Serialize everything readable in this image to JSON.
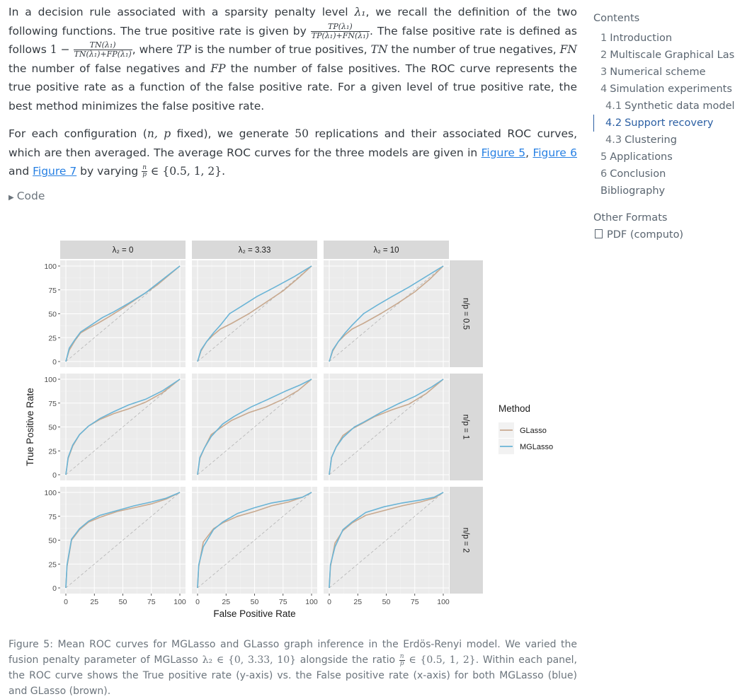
{
  "text": {
    "p1_a": "In a decision rule associated with a sparsity penalty level ",
    "lambda1": "λ₁",
    "p1_b": ", we recall the definition of the two following functions. The true positive rate is given by ",
    "tpr_num": "TP(λ₁)",
    "tpr_den": "TP(λ₁)+FN(λ₁)",
    "p1_c": ". The false positive rate is defined as follows ",
    "one_minus": "1 −",
    "fpr_num": "TN(λ₁)",
    "fpr_den": "TN(λ₁)+FP(λ₁)",
    "p1_d": ", where ",
    "tp": "TP",
    "p1_e": " is the number of true positives, ",
    "tn": "TN",
    "p1_f": " the number of true negatives, ",
    "fn": "FN",
    "p1_g": " the number of false negatives and ",
    "fp": "FP",
    "p1_h": " the number of false positives. The ROC curve represents the true positive rate as a function of the false positive rate. For a given level of true positive rate, the best method minimizes the false positive rate.",
    "p2_a": "For each configuration (",
    "np": "n, p",
    "p2_b": " fixed), we generate ",
    "fifty": "50",
    "p2_c": " replications and their associated ROC curves, which are then averaged. The average ROC curves for the three models are given in ",
    "fig5": "Figure 5",
    "comma": ", ",
    "fig6": "Figure 6",
    "and": " and ",
    "fig7": "Figure 7",
    "p2_d": " by varying ",
    "frac_n": "n",
    "frac_p": "p",
    "set_ratio": " ∈ {0.5, 1, 2}.",
    "code": "Code",
    "cap_a": "Figure 5: Mean ROC curves for MGLasso and GLasso graph inference in the Erdös-Renyi model. We varied the fusion penalty parameter of MGLasso ",
    "cap_lambda": "λ₂ ∈ {0, 3.33, 10}",
    "cap_b": " alongside the ratio ",
    "cap_set": " ∈ {0.5, 1, 2}",
    "cap_c": ". Within each panel, the ROC curve shows the True positive rate (y-axis) vs. the False positive rate (x-axis) for both MGLasso (blue) and GLasso (brown)."
  },
  "toc": {
    "title": "Contents",
    "items": [
      {
        "num": "1",
        "label": "Introduction"
      },
      {
        "num": "2",
        "label": "Multiscale Graphical Lasso"
      },
      {
        "num": "3",
        "label": "Numerical scheme"
      },
      {
        "num": "4",
        "label": "Simulation experiments"
      },
      {
        "num": "4.1",
        "label": "Synthetic data models"
      },
      {
        "num": "4.2",
        "label": "Support recovery"
      },
      {
        "num": "4.3",
        "label": "Clustering"
      },
      {
        "num": "5",
        "label": "Applications"
      },
      {
        "num": "6",
        "label": "Conclusion"
      },
      {
        "num": "",
        "label": "Bibliography"
      }
    ]
  },
  "formats": {
    "title": "Other Formats",
    "pdf": "PDF (computo)"
  },
  "colors": {
    "glasso": "#c8a98f",
    "mglasso": "#6ab4d6",
    "panel": "#ebebeb",
    "strip": "#d9d9d9",
    "link": "#2780e3"
  },
  "chart_data": {
    "type": "line",
    "xlabel": "False Positive Rate",
    "ylabel": "True Positive Rate",
    "xlim": [
      0,
      100
    ],
    "ylim": [
      0,
      100
    ],
    "xticks": [
      "0",
      "25",
      "50",
      "75",
      "100"
    ],
    "yticks": [
      "0",
      "25",
      "50",
      "75",
      "100"
    ],
    "col_strips": [
      "λ₂ = 0",
      "λ₂ = 3.33",
      "λ₂ = 10"
    ],
    "row_strips": [
      "n/p = 0.5",
      "n/p = 1",
      "n/p = 2"
    ],
    "legend": {
      "title": "Method",
      "entries": [
        "GLasso",
        "MGLasso"
      ]
    },
    "grid": true,
    "series_names": [
      "GLasso",
      "MGLasso"
    ],
    "panels": [
      [
        {
          "glasso": [
            [
              0,
              0
            ],
            [
              3,
              12
            ],
            [
              8,
              22
            ],
            [
              13,
              30
            ],
            [
              20,
              35
            ],
            [
              28,
              40
            ],
            [
              38,
              47
            ],
            [
              50,
              56
            ],
            [
              65,
              68
            ],
            [
              80,
              80
            ],
            [
              100,
              100
            ]
          ],
          "mglasso": [
            [
              0,
              0
            ],
            [
              3,
              14
            ],
            [
              8,
              23
            ],
            [
              13,
              31
            ],
            [
              22,
              38
            ],
            [
              32,
              46
            ],
            [
              42,
              52
            ],
            [
              55,
              61
            ],
            [
              70,
              72
            ],
            [
              85,
              86
            ],
            [
              100,
              100
            ]
          ]
        },
        {
          "glasso": [
            [
              0,
              0
            ],
            [
              3,
              11
            ],
            [
              8,
              21
            ],
            [
              14,
              28
            ],
            [
              20,
              34
            ],
            [
              30,
              40
            ],
            [
              45,
              50
            ],
            [
              60,
              62
            ],
            [
              75,
              74
            ],
            [
              88,
              87
            ],
            [
              100,
              100
            ]
          ],
          "mglasso": [
            [
              0,
              0
            ],
            [
              3,
              12
            ],
            [
              8,
              21
            ],
            [
              14,
              30
            ],
            [
              20,
              38
            ],
            [
              28,
              50
            ],
            [
              40,
              59
            ],
            [
              52,
              68
            ],
            [
              68,
              78
            ],
            [
              85,
              89
            ],
            [
              100,
              100
            ]
          ]
        },
        {
          "glasso": [
            [
              0,
              0
            ],
            [
              3,
              11
            ],
            [
              8,
              21
            ],
            [
              14,
              28
            ],
            [
              20,
              34
            ],
            [
              30,
              40
            ],
            [
              45,
              50
            ],
            [
              60,
              61
            ],
            [
              75,
              73
            ],
            [
              88,
              86
            ],
            [
              100,
              100
            ]
          ],
          "mglasso": [
            [
              0,
              0
            ],
            [
              3,
              12
            ],
            [
              8,
              21
            ],
            [
              14,
              30
            ],
            [
              20,
              38
            ],
            [
              30,
              50
            ],
            [
              42,
              59
            ],
            [
              55,
              68
            ],
            [
              70,
              78
            ],
            [
              85,
              89
            ],
            [
              100,
              100
            ]
          ]
        }
      ],
      [
        {
          "glasso": [
            [
              0,
              0
            ],
            [
              2,
              17
            ],
            [
              6,
              30
            ],
            [
              12,
              42
            ],
            [
              20,
              51
            ],
            [
              30,
              58
            ],
            [
              42,
              64
            ],
            [
              55,
              69
            ],
            [
              70,
              76
            ],
            [
              85,
              86
            ],
            [
              100,
              100
            ]
          ],
          "mglasso": [
            [
              0,
              0
            ],
            [
              2,
              18
            ],
            [
              6,
              31
            ],
            [
              12,
              42
            ],
            [
              20,
              51
            ],
            [
              30,
              59
            ],
            [
              42,
              66
            ],
            [
              55,
              73
            ],
            [
              70,
              79
            ],
            [
              85,
              88
            ],
            [
              100,
              100
            ]
          ]
        },
        {
          "glasso": [
            [
              0,
              0
            ],
            [
              2,
              17
            ],
            [
              6,
              28
            ],
            [
              12,
              42
            ],
            [
              20,
              49
            ],
            [
              30,
              57
            ],
            [
              45,
              65
            ],
            [
              60,
              71
            ],
            [
              75,
              79
            ],
            [
              88,
              88
            ],
            [
              100,
              100
            ]
          ],
          "mglasso": [
            [
              0,
              0
            ],
            [
              2,
              18
            ],
            [
              6,
              28
            ],
            [
              12,
              40
            ],
            [
              22,
              53
            ],
            [
              32,
              61
            ],
            [
              47,
              71
            ],
            [
              62,
              79
            ],
            [
              78,
              88
            ],
            [
              90,
              94
            ],
            [
              100,
              100
            ]
          ]
        },
        {
          "glasso": [
            [
              0,
              0
            ],
            [
              2,
              18
            ],
            [
              6,
              29
            ],
            [
              12,
              41
            ],
            [
              20,
              48
            ],
            [
              28,
              53
            ],
            [
              40,
              61
            ],
            [
              55,
              68
            ],
            [
              70,
              74
            ],
            [
              85,
              85
            ],
            [
              100,
              100
            ]
          ],
          "mglasso": [
            [
              0,
              0
            ],
            [
              2,
              18
            ],
            [
              6,
              29
            ],
            [
              12,
              39
            ],
            [
              22,
              50
            ],
            [
              30,
              55
            ],
            [
              45,
              65
            ],
            [
              60,
              74
            ],
            [
              75,
              82
            ],
            [
              90,
              92
            ],
            [
              100,
              100
            ]
          ]
        }
      ],
      [
        {
          "glasso": [
            [
              0,
              0
            ],
            [
              1,
              22
            ],
            [
              5,
              50
            ],
            [
              12,
              61
            ],
            [
              20,
              69
            ],
            [
              30,
              74
            ],
            [
              45,
              80
            ],
            [
              60,
              84
            ],
            [
              75,
              88
            ],
            [
              88,
              93
            ],
            [
              100,
              100
            ]
          ],
          "mglasso": [
            [
              0,
              0
            ],
            [
              1,
              24
            ],
            [
              5,
              51
            ],
            [
              12,
              62
            ],
            [
              20,
              70
            ],
            [
              30,
              76
            ],
            [
              45,
              81
            ],
            [
              60,
              86
            ],
            [
              75,
              90
            ],
            [
              88,
              94
            ],
            [
              100,
              100
            ]
          ]
        },
        {
          "glasso": [
            [
              0,
              0
            ],
            [
              1,
              22
            ],
            [
              5,
              48
            ],
            [
              14,
              62
            ],
            [
              22,
              68
            ],
            [
              35,
              75
            ],
            [
              50,
              80
            ],
            [
              65,
              86
            ],
            [
              80,
              90
            ],
            [
              92,
              95
            ],
            [
              100,
              100
            ]
          ],
          "mglasso": [
            [
              0,
              0
            ],
            [
              1,
              24
            ],
            [
              5,
              43
            ],
            [
              14,
              61
            ],
            [
              22,
              69
            ],
            [
              35,
              78
            ],
            [
              50,
              84
            ],
            [
              65,
              89
            ],
            [
              80,
              92
            ],
            [
              92,
              95
            ],
            [
              100,
              100
            ]
          ]
        },
        {
          "glasso": [
            [
              0,
              0
            ],
            [
              1,
              22
            ],
            [
              5,
              47
            ],
            [
              12,
              60
            ],
            [
              20,
              68
            ],
            [
              32,
              76
            ],
            [
              48,
              81
            ],
            [
              64,
              86
            ],
            [
              80,
              90
            ],
            [
              92,
              94
            ],
            [
              100,
              100
            ]
          ],
          "mglasso": [
            [
              0,
              0
            ],
            [
              1,
              24
            ],
            [
              5,
              43
            ],
            [
              12,
              61
            ],
            [
              20,
              69
            ],
            [
              32,
              79
            ],
            [
              48,
              85
            ],
            [
              64,
              89
            ],
            [
              80,
              92
            ],
            [
              92,
              95
            ],
            [
              100,
              100
            ]
          ]
        }
      ]
    ]
  }
}
